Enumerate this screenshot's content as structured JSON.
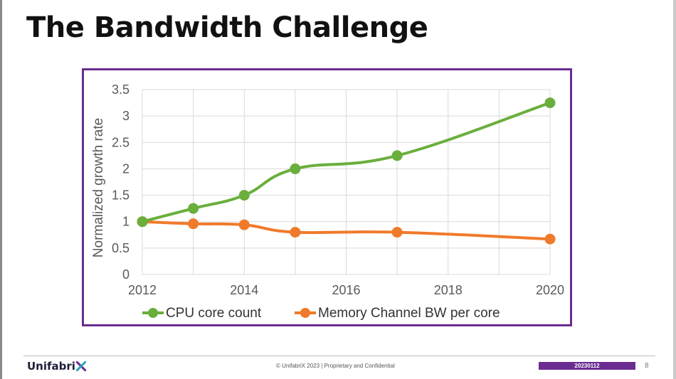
{
  "slide": {
    "title": "The Bandwidth Challenge",
    "footer": {
      "logo_text": "Unifabri",
      "copyright": "© UnifabriX 2023 | Proprietary and Confidential",
      "date": "20230112",
      "page": "8"
    }
  },
  "colors": {
    "frame": "#6a2c91",
    "cpu": "#6aae3c",
    "mem": "#f07a2a",
    "grid": "#d9d9d9",
    "axis_text": "#595959"
  },
  "chart_data": {
    "type": "line",
    "title": "",
    "xlabel": "",
    "ylabel": "Normalized growth rate",
    "xlim": [
      2012,
      2020
    ],
    "ylim": [
      0,
      3.5
    ],
    "x_ticks": [
      "2012",
      "2014",
      "2016",
      "2018",
      "2020"
    ],
    "y_ticks": [
      "0",
      "0.5",
      "1",
      "1.5",
      "2",
      "2.5",
      "3",
      "3.5"
    ],
    "grid": true,
    "legend": "bottom",
    "series": [
      {
        "name": "CPU core count",
        "color": "#6aae3c",
        "x": [
          2012,
          2013,
          2014,
          2015,
          2017,
          2020
        ],
        "y": [
          1.0,
          1.25,
          1.5,
          2.0,
          2.25,
          3.25
        ]
      },
      {
        "name": "Memory Channel BW per core",
        "color": "#f07a2a",
        "x": [
          2012,
          2013,
          2014,
          2015,
          2017,
          2020
        ],
        "y": [
          1.0,
          0.96,
          0.94,
          0.8,
          0.8,
          0.67
        ]
      }
    ]
  }
}
